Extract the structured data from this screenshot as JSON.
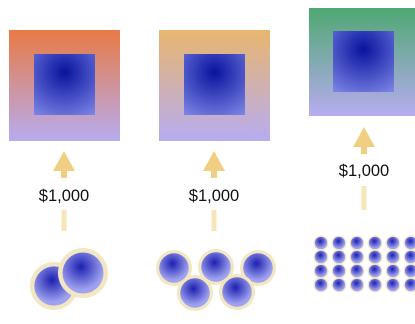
{
  "columns": [
    {
      "price_label": "$1,000",
      "outer_gradient": [
        "#e87a44",
        "#b7acf0"
      ],
      "coin_count": 2
    },
    {
      "price_label": "$1,000",
      "outer_gradient": [
        "#e8b66e",
        "#b7acf0"
      ],
      "coin_count": 5
    },
    {
      "price_label": "$1,000",
      "outer_gradient": [
        "#4ea872",
        "#b7acf0"
      ],
      "coin_count": 24
    }
  ],
  "colors": {
    "inner_square": [
      "#08139e",
      "#7d86e6"
    ],
    "arrow": "#f1cf82",
    "coin_dark": "#1c20b0",
    "coin_light": "#9fa2ef",
    "coin_rim": "#f2e6c3"
  },
  "icons": [
    "up-arrow-icon",
    "coin-icon"
  ]
}
